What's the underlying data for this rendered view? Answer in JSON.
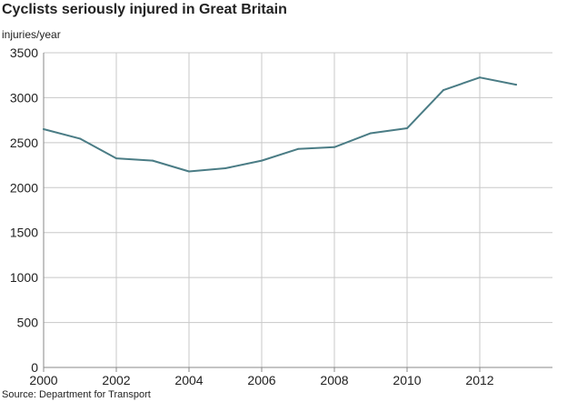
{
  "chart_data": {
    "type": "line",
    "title": "Cyclists seriously injured in Great Britain",
    "ylabel": "injuries/year",
    "xlabel": "",
    "source": "Source: Department for Transport",
    "xlim": [
      2000,
      2014
    ],
    "ylim": [
      0,
      3500
    ],
    "x_ticks": [
      2000,
      2002,
      2004,
      2006,
      2008,
      2010,
      2012
    ],
    "y_ticks": [
      0,
      500,
      1000,
      1500,
      2000,
      2500,
      3000,
      3500
    ],
    "grid": true,
    "series": [
      {
        "name": "Cyclists seriously injured",
        "color": "#4a7c85",
        "x": [
          2000,
          2001,
          2002,
          2003,
          2004,
          2005,
          2006,
          2007,
          2008,
          2009,
          2010,
          2011,
          2012,
          2013
        ],
        "values": [
          2650,
          2545,
          2325,
          2300,
          2180,
          2215,
          2300,
          2430,
          2450,
          2605,
          2660,
          3085,
          3225,
          3145
        ]
      }
    ]
  }
}
